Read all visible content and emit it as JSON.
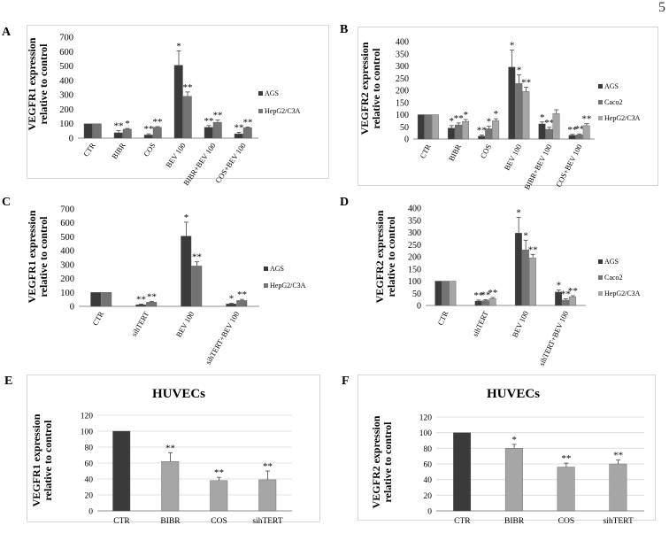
{
  "page_number": "5",
  "colors": {
    "dark": "#3a3a3a",
    "mid": "#737373",
    "light": "#a6a6a6",
    "axis": "#8c8c8c",
    "grid": "#d9d9d9"
  },
  "chart_data": [
    {
      "panel": "A",
      "type": "bar",
      "ylabel": "VEGFR1 expression relative to control",
      "ylim": [
        0,
        700
      ],
      "yticks": [
        0,
        100,
        200,
        300,
        400,
        500,
        600,
        700
      ],
      "categories": [
        "CTR",
        "BIBR",
        "COS",
        "BEV 100",
        "BIBR+BEV 100",
        "COS+BEV 100"
      ],
      "series": [
        {
          "name": "AGS",
          "values": [
            100,
            37,
            22,
            505,
            75,
            30
          ],
          "errors": [
            0,
            15,
            8,
            100,
            12,
            10
          ],
          "labels": [
            "",
            "**",
            "**",
            "*",
            "**",
            "**"
          ]
        },
        {
          "name": "HepG2/C3A",
          "values": [
            100,
            62,
            75,
            290,
            110,
            72
          ],
          "errors": [
            0,
            5,
            5,
            30,
            15,
            5
          ],
          "labels": [
            "",
            "*",
            "**",
            "**",
            "**",
            "**"
          ]
        }
      ],
      "legend": [
        "AGS",
        "HepG2/C3A"
      ]
    },
    {
      "panel": "B",
      "type": "bar",
      "ylabel": "VEGFR2 expression relative to control",
      "ylim": [
        0,
        400
      ],
      "yticks": [
        0,
        50,
        100,
        150,
        200,
        250,
        300,
        350,
        400
      ],
      "categories": [
        "CTR",
        "BIBR",
        "COS",
        "BEV 100",
        "BIBR+BEV 100",
        "COS+BEV 100"
      ],
      "series": [
        {
          "name": "AGS",
          "values": [
            100,
            45,
            12,
            295,
            62,
            15
          ],
          "errors": [
            0,
            10,
            4,
            70,
            8,
            4
          ],
          "labels": [
            "",
            "*",
            "**",
            "*",
            "*",
            "**"
          ]
        },
        {
          "name": "Caco2",
          "values": [
            100,
            58,
            42,
            228,
            40,
            17
          ],
          "errors": [
            0,
            8,
            10,
            35,
            8,
            4
          ],
          "labels": [
            "",
            "**",
            "*",
            "*",
            "**",
            "**"
          ]
        },
        {
          "name": "HepG2/C3A",
          "values": [
            100,
            72,
            75,
            195,
            105,
            55
          ],
          "errors": [
            0,
            8,
            8,
            18,
            15,
            8
          ],
          "labels": [
            "",
            "*",
            "*",
            "**",
            "",
            "**"
          ]
        }
      ],
      "legend": [
        "AGS",
        "Caco2",
        "HepG2/C3A"
      ]
    },
    {
      "panel": "C",
      "type": "bar",
      "ylabel": "VEGFR1 expression relative to control",
      "ylim": [
        0,
        700
      ],
      "yticks": [
        0,
        100,
        200,
        300,
        400,
        500,
        600,
        700
      ],
      "categories": [
        "CTR",
        "sihTERT",
        "BEV 100",
        "sihTERT+BEV 100"
      ],
      "series": [
        {
          "name": "AGS",
          "values": [
            100,
            12,
            505,
            17
          ],
          "errors": [
            0,
            4,
            100,
            5
          ],
          "labels": [
            "",
            "**",
            "*",
            "*"
          ]
        },
        {
          "name": "HepG2/C3A",
          "values": [
            100,
            30,
            290,
            42
          ],
          "errors": [
            0,
            5,
            30,
            8
          ],
          "labels": [
            "",
            "**",
            "**",
            "**"
          ]
        }
      ],
      "legend": [
        "AGS",
        "HepG2/C3A"
      ]
    },
    {
      "panel": "D",
      "type": "bar",
      "ylabel": "VEGFR2 expression relative to control",
      "ylim": [
        0,
        400
      ],
      "yticks": [
        0,
        50,
        100,
        150,
        200,
        250,
        300,
        350,
        400
      ],
      "categories": [
        "CTR",
        "sihTERT",
        "BEV 100",
        "sihTERT+BEV 100"
      ],
      "series": [
        {
          "name": "AGS",
          "values": [
            100,
            18,
            297,
            55
          ],
          "errors": [
            0,
            4,
            65,
            8
          ],
          "labels": [
            "",
            "**",
            "*",
            "*"
          ]
        },
        {
          "name": "Caco2",
          "values": [
            100,
            20,
            228,
            22
          ],
          "errors": [
            0,
            4,
            40,
            5
          ],
          "labels": [
            "",
            "**",
            "*",
            "**"
          ]
        },
        {
          "name": "HepG2/C3A",
          "values": [
            100,
            28,
            195,
            35
          ],
          "errors": [
            0,
            5,
            15,
            5
          ],
          "labels": [
            "",
            "**",
            "**",
            "**"
          ]
        }
      ],
      "legend": [
        "AGS",
        "Caco2",
        "HepG2/C3A"
      ]
    },
    {
      "panel": "E",
      "type": "bar",
      "title": "HUVECs",
      "ylabel": "VEGFR1 expression relative to control",
      "ylim": [
        0,
        120
      ],
      "yticks": [
        0,
        20,
        40,
        60,
        80,
        100,
        120
      ],
      "categories": [
        "CTR",
        "BIBR",
        "COS",
        "sihTERT"
      ],
      "values": [
        100,
        62,
        38,
        39
      ],
      "errors": [
        0,
        11,
        4,
        11
      ],
      "labels": [
        "",
        "**",
        "**",
        "**"
      ]
    },
    {
      "panel": "F",
      "type": "bar",
      "title": "HUVECs",
      "ylabel": "VEGFR2 expression relative to control",
      "ylim": [
        0,
        120
      ],
      "yticks": [
        0,
        20,
        40,
        60,
        80,
        100,
        120
      ],
      "categories": [
        "CTR",
        "BIBR",
        "COS",
        "sihTERT"
      ],
      "values": [
        100,
        80,
        56,
        60
      ],
      "errors": [
        0,
        5,
        5,
        5
      ],
      "labels": [
        "",
        "*",
        "**",
        "**"
      ]
    }
  ]
}
